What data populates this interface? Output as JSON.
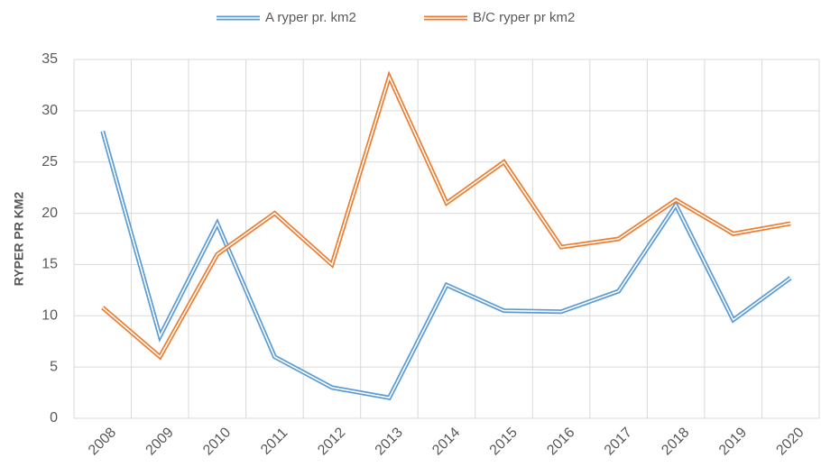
{
  "chart_data": {
    "type": "line",
    "y_label": "RYPER PR KM2",
    "categories": [
      "2008",
      "2009",
      "2010",
      "2011",
      "2012",
      "2013",
      "2014",
      "2015",
      "2016",
      "2017",
      "2018",
      "2019",
      "2020"
    ],
    "series": [
      {
        "name": "A ryper pr. km2",
        "color": "#5b9bd5",
        "values": [
          28,
          8,
          19,
          6,
          3,
          2,
          13,
          10.5,
          10.4,
          12.4,
          20.8,
          9.6,
          13.7
        ]
      },
      {
        "name": "B/C ryper pr km2",
        "color": "#ed7d31",
        "values": [
          10.8,
          6,
          16,
          20,
          15,
          33.3,
          21,
          25,
          16.7,
          17.5,
          21.3,
          18,
          19
        ]
      }
    ],
    "ylim": [
      0,
      35
    ],
    "yticks": [
      0,
      5,
      10,
      15,
      20,
      25,
      30,
      35
    ],
    "grid": true,
    "legend": "top"
  }
}
